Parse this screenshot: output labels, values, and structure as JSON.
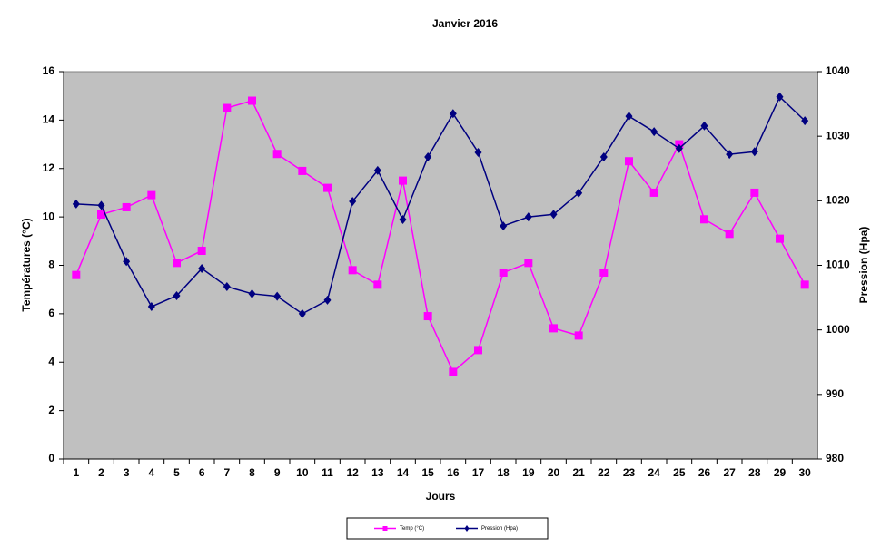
{
  "chart_data": {
    "type": "line",
    "title": "Janvier 2016",
    "x_label": "Jours",
    "y_label": "Températures (°C)",
    "y2_label": "Pression (Hpa)",
    "categories": [
      "1",
      "2",
      "3",
      "4",
      "5",
      "6",
      "7",
      "8",
      "9",
      "10",
      "11",
      "12",
      "13",
      "14",
      "15",
      "16",
      "17",
      "18",
      "19",
      "20",
      "21",
      "22",
      "23",
      "24",
      "25",
      "26",
      "27",
      "28",
      "29",
      "30"
    ],
    "series": [
      {
        "name": "Temp (°C)",
        "color": "#ff00ff",
        "marker": "square",
        "values": [
          7.6,
          10.1,
          10.4,
          10.9,
          8.1,
          8.6,
          14.5,
          14.8,
          12.6,
          11.9,
          11.2,
          7.8,
          7.2,
          11.5,
          5.9,
          3.6,
          4.5,
          7.7,
          8.1,
          5.4,
          5.1,
          7.7,
          12.3,
          11.0,
          13.0,
          9.9,
          9.3,
          11.0,
          9.1,
          7.2
        ]
      },
      {
        "name": "Pression (Hpa)",
        "color": "#000080",
        "marker": "diamond",
        "axis": "y2",
        "values": [
          1019.5,
          1019.3,
          1010.6,
          1003.6,
          1005.3,
          1009.5,
          1006.7,
          1005.6,
          1005.2,
          1002.5,
          1004.6,
          1019.9,
          1024.7,
          1017.1,
          1026.8,
          1033.5,
          1027.5,
          1016.1,
          1017.5,
          1017.9,
          1021.2,
          1026.8,
          1033.1,
          1030.7,
          1028.1,
          1031.6,
          1027.2,
          1027.6,
          1036.1,
          1032.4
        ]
      }
    ],
    "ylim": [
      0,
      16
    ],
    "yticks": [
      0,
      2,
      4,
      6,
      8,
      10,
      12,
      14,
      16
    ],
    "y2lim": [
      980,
      1040
    ],
    "y2ticks": [
      980,
      990,
      1000,
      1010,
      1020,
      1030,
      1040
    ],
    "plot_background": "#c0c0c0",
    "grid": false,
    "legend_position": "bottom"
  }
}
